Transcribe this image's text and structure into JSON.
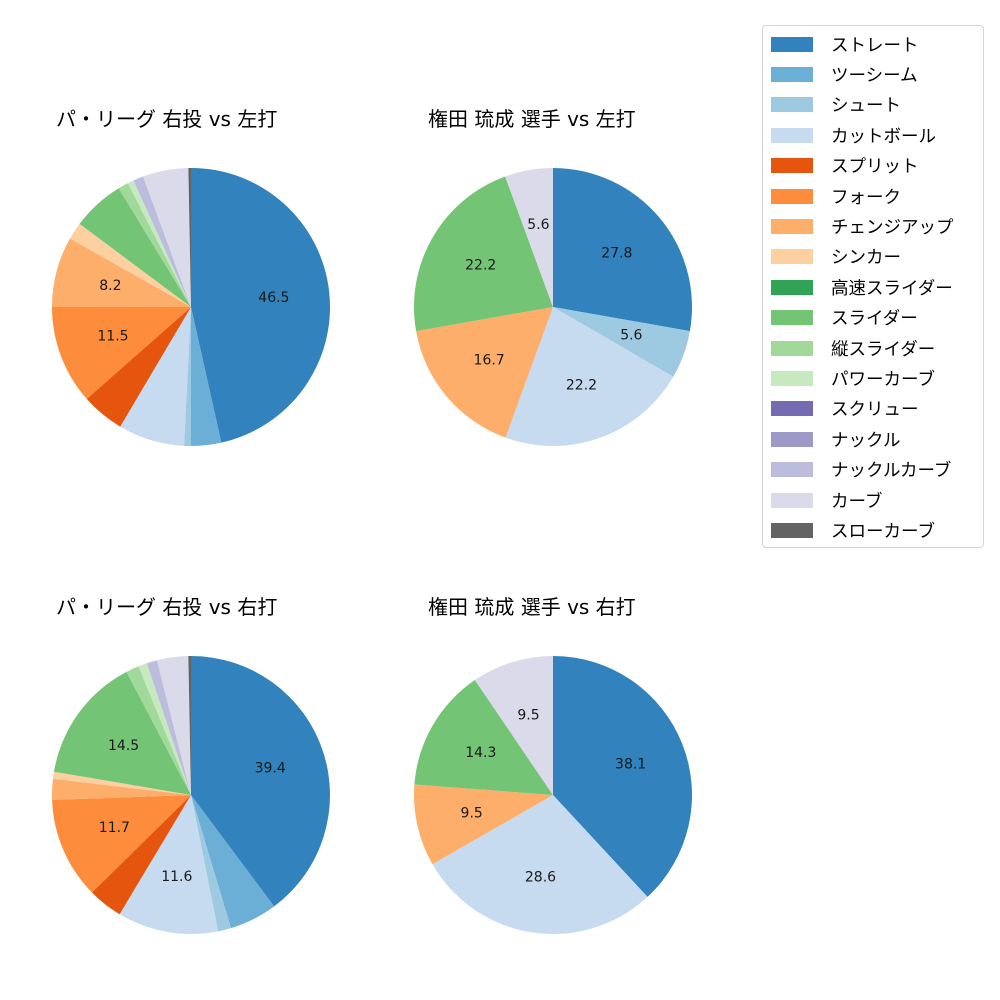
{
  "legend": {
    "items": [
      {
        "label": "ストレート",
        "color": "#3182bd"
      },
      {
        "label": "ツーシーム",
        "color": "#6baed6"
      },
      {
        "label": "シュート",
        "color": "#9ecae1"
      },
      {
        "label": "カットボール",
        "color": "#c6dbef"
      },
      {
        "label": "スプリット",
        "color": "#e6550d"
      },
      {
        "label": "フォーク",
        "color": "#fd8d3c"
      },
      {
        "label": "チェンジアップ",
        "color": "#fdae6b"
      },
      {
        "label": "シンカー",
        "color": "#fdd0a2"
      },
      {
        "label": "高速スライダー",
        "color": "#31a354"
      },
      {
        "label": "スライダー",
        "color": "#74c476"
      },
      {
        "label": "縦スライダー",
        "color": "#a1d99b"
      },
      {
        "label": "パワーカーブ",
        "color": "#c7e9c0"
      },
      {
        "label": "スクリュー",
        "color": "#756bb1"
      },
      {
        "label": "ナックル",
        "color": "#9e9ac8"
      },
      {
        "label": "ナックルカーブ",
        "color": "#bcbddc"
      },
      {
        "label": "カーブ",
        "color": "#dadaeb"
      },
      {
        "label": "スローカーブ",
        "color": "#636363"
      }
    ]
  },
  "chart_data": [
    {
      "type": "pie",
      "title": "パ・リーグ 右投 vs 左打",
      "categories": [
        "ストレート",
        "ツーシーム",
        "シュート",
        "カットボール",
        "スプリット",
        "フォーク",
        "チェンジアップ",
        "シンカー",
        "高速スライダー",
        "スライダー",
        "縦スライダー",
        "パワーカーブ",
        "スクリュー",
        "ナックル",
        "ナックルカーブ",
        "カーブ",
        "スローカーブ"
      ],
      "values": [
        46.5,
        3.5,
        0.8,
        7.7,
        5.0,
        11.5,
        8.2,
        2.0,
        0.0,
        6.1,
        1.2,
        0.7,
        0.0,
        0.0,
        1.2,
        5.3,
        0.3
      ],
      "labels_shown": [
        "46.5",
        "11.5",
        "8.2"
      ],
      "start_angle": 90,
      "direction": "clockwise"
    },
    {
      "type": "pie",
      "title": "権田 琉成 選手 vs 左打",
      "categories": [
        "ストレート",
        "シュート",
        "カットボール",
        "チェンジアップ",
        "スライダー",
        "カーブ"
      ],
      "values": [
        27.8,
        5.6,
        22.2,
        16.7,
        22.2,
        5.6
      ],
      "labels_shown": [
        "27.8",
        "5.6",
        "22.2",
        "16.7",
        "22.2",
        "5.6"
      ],
      "start_angle": 90,
      "direction": "clockwise"
    },
    {
      "type": "pie",
      "title": "パ・リーグ 右投 vs 右打",
      "categories": [
        "ストレート",
        "ツーシーム",
        "シュート",
        "カットボール",
        "スプリット",
        "フォーク",
        "チェンジアップ",
        "シンカー",
        "高速スライダー",
        "スライダー",
        "縦スライダー",
        "パワーカーブ",
        "スクリュー",
        "ナックル",
        "ナックルカーブ",
        "カーブ",
        "スローカーブ"
      ],
      "values": [
        39.4,
        5.5,
        1.5,
        11.6,
        4.0,
        11.7,
        2.4,
        0.8,
        0.0,
        14.5,
        1.5,
        1.0,
        0.0,
        0.0,
        1.2,
        3.6,
        0.3
      ],
      "labels_shown": [
        "39.4",
        "11.6",
        "11.7",
        "14.5"
      ],
      "start_angle": 90,
      "direction": "clockwise"
    },
    {
      "type": "pie",
      "title": "権田 琉成 選手 vs 右打",
      "categories": [
        "ストレート",
        "カットボール",
        "チェンジアップ",
        "スライダー",
        "カーブ"
      ],
      "values": [
        38.1,
        28.6,
        9.5,
        14.3,
        9.5
      ],
      "labels_shown": [
        "38.1",
        "28.6",
        "9.5",
        "14.3",
        "9.5"
      ],
      "start_angle": 90,
      "direction": "clockwise"
    }
  ]
}
